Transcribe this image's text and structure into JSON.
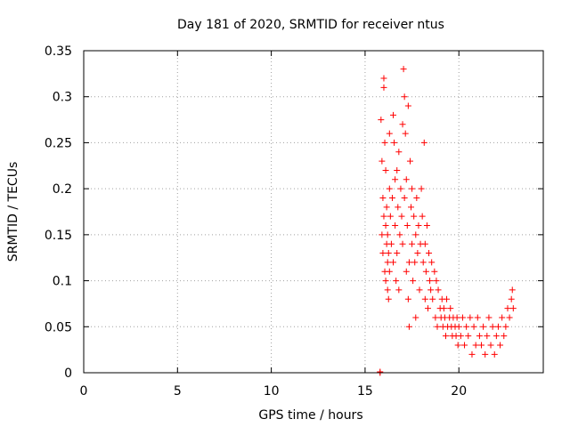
{
  "chart_data": {
    "type": "scatter",
    "title": "Day 181 of 2020, SRMTID for receiver ntus",
    "xlabel": "GPS time / hours",
    "ylabel": "SRMTID / TECUs",
    "xlim": [
      0,
      24.5
    ],
    "ylim": [
      0,
      0.35
    ],
    "xticks": [
      0,
      5,
      10,
      15,
      20
    ],
    "xtick_labels": [
      "0",
      "5",
      "10",
      "15",
      "20"
    ],
    "yticks": [
      0,
      0.05,
      0.1,
      0.15,
      0.2,
      0.25,
      0.3,
      0.35
    ],
    "ytick_labels": [
      "0",
      "0.05",
      "0.1",
      "0.15",
      "0.2",
      "0.25",
      "0.3",
      "0.35"
    ],
    "grid": true,
    "marker": "+",
    "series_color": "#ff0000",
    "points": [
      [
        15.8,
        0.0
      ],
      [
        15.8,
        0.001
      ],
      [
        15.85,
        0.275
      ],
      [
        15.9,
        0.23
      ],
      [
        15.95,
        0.19
      ],
      [
        16.0,
        0.31
      ],
      [
        16.0,
        0.32
      ],
      [
        16.05,
        0.25
      ],
      [
        16.1,
        0.22
      ],
      [
        16.1,
        0.16
      ],
      [
        16.15,
        0.14
      ],
      [
        16.2,
        0.12
      ],
      [
        16.2,
        0.09
      ],
      [
        16.25,
        0.08
      ],
      [
        16.3,
        0.2
      ],
      [
        16.3,
        0.26
      ],
      [
        15.9,
        0.15
      ],
      [
        15.95,
        0.13
      ],
      [
        16.0,
        0.17
      ],
      [
        16.05,
        0.11
      ],
      [
        16.1,
        0.1
      ],
      [
        16.15,
        0.18
      ],
      [
        16.2,
        0.15
      ],
      [
        16.25,
        0.13
      ],
      [
        16.3,
        0.11
      ],
      [
        16.35,
        0.17
      ],
      [
        16.4,
        0.14
      ],
      [
        16.45,
        0.19
      ],
      [
        16.5,
        0.12
      ],
      [
        16.5,
        0.28
      ],
      [
        16.55,
        0.25
      ],
      [
        16.6,
        0.21
      ],
      [
        16.6,
        0.16
      ],
      [
        16.65,
        0.1
      ],
      [
        16.7,
        0.22
      ],
      [
        16.7,
        0.13
      ],
      [
        16.75,
        0.18
      ],
      [
        16.8,
        0.24
      ],
      [
        16.8,
        0.09
      ],
      [
        16.85,
        0.15
      ],
      [
        16.9,
        0.2
      ],
      [
        16.95,
        0.17
      ],
      [
        17.0,
        0.14
      ],
      [
        17.0,
        0.27
      ],
      [
        17.05,
        0.33
      ],
      [
        17.1,
        0.3
      ],
      [
        17.1,
        0.19
      ],
      [
        17.15,
        0.26
      ],
      [
        17.2,
        0.11
      ],
      [
        17.2,
        0.21
      ],
      [
        17.25,
        0.16
      ],
      [
        17.3,
        0.29
      ],
      [
        17.3,
        0.08
      ],
      [
        17.35,
        0.05
      ],
      [
        17.35,
        0.12
      ],
      [
        17.4,
        0.23
      ],
      [
        17.45,
        0.18
      ],
      [
        17.5,
        0.14
      ],
      [
        17.5,
        0.2
      ],
      [
        17.55,
        0.1
      ],
      [
        17.6,
        0.17
      ],
      [
        17.65,
        0.12
      ],
      [
        17.7,
        0.06
      ],
      [
        17.7,
        0.15
      ],
      [
        17.75,
        0.19
      ],
      [
        17.8,
        0.13
      ],
      [
        17.85,
        0.16
      ],
      [
        17.9,
        0.09
      ],
      [
        17.95,
        0.14
      ],
      [
        18.0,
        0.2
      ],
      [
        18.05,
        0.17
      ],
      [
        18.1,
        0.12
      ],
      [
        18.15,
        0.25
      ],
      [
        18.2,
        0.14
      ],
      [
        18.2,
        0.08
      ],
      [
        18.25,
        0.11
      ],
      [
        18.3,
        0.16
      ],
      [
        18.35,
        0.07
      ],
      [
        18.4,
        0.13
      ],
      [
        18.45,
        0.1
      ],
      [
        18.5,
        0.09
      ],
      [
        18.55,
        0.12
      ],
      [
        18.6,
        0.08
      ],
      [
        18.7,
        0.11
      ],
      [
        18.75,
        0.06
      ],
      [
        18.8,
        0.1
      ],
      [
        18.85,
        0.05
      ],
      [
        18.9,
        0.09
      ],
      [
        19.0,
        0.07
      ],
      [
        19.05,
        0.06
      ],
      [
        19.1,
        0.08
      ],
      [
        19.15,
        0.05
      ],
      [
        19.2,
        0.07
      ],
      [
        19.25,
        0.06
      ],
      [
        19.3,
        0.04
      ],
      [
        19.35,
        0.08
      ],
      [
        19.4,
        0.05
      ],
      [
        19.5,
        0.06
      ],
      [
        19.55,
        0.07
      ],
      [
        19.6,
        0.05
      ],
      [
        19.65,
        0.04
      ],
      [
        19.7,
        0.06
      ],
      [
        19.8,
        0.05
      ],
      [
        19.85,
        0.04
      ],
      [
        19.9,
        0.06
      ],
      [
        19.95,
        0.03
      ],
      [
        20.0,
        0.05
      ],
      [
        20.1,
        0.04
      ],
      [
        20.2,
        0.06
      ],
      [
        20.3,
        0.03
      ],
      [
        20.4,
        0.05
      ],
      [
        20.5,
        0.04
      ],
      [
        20.6,
        0.06
      ],
      [
        20.7,
        0.02
      ],
      [
        20.8,
        0.05
      ],
      [
        20.9,
        0.03
      ],
      [
        21.0,
        0.06
      ],
      [
        21.1,
        0.04
      ],
      [
        21.2,
        0.03
      ],
      [
        21.3,
        0.05
      ],
      [
        21.4,
        0.02
      ],
      [
        21.5,
        0.04
      ],
      [
        21.6,
        0.06
      ],
      [
        21.7,
        0.03
      ],
      [
        21.8,
        0.05
      ],
      [
        21.9,
        0.02
      ],
      [
        22.0,
        0.04
      ],
      [
        22.1,
        0.05
      ],
      [
        22.2,
        0.03
      ],
      [
        22.3,
        0.06
      ],
      [
        22.4,
        0.04
      ],
      [
        22.5,
        0.05
      ],
      [
        22.6,
        0.07
      ],
      [
        22.7,
        0.06
      ],
      [
        22.8,
        0.08
      ],
      [
        22.85,
        0.09
      ],
      [
        22.9,
        0.07
      ]
    ]
  }
}
